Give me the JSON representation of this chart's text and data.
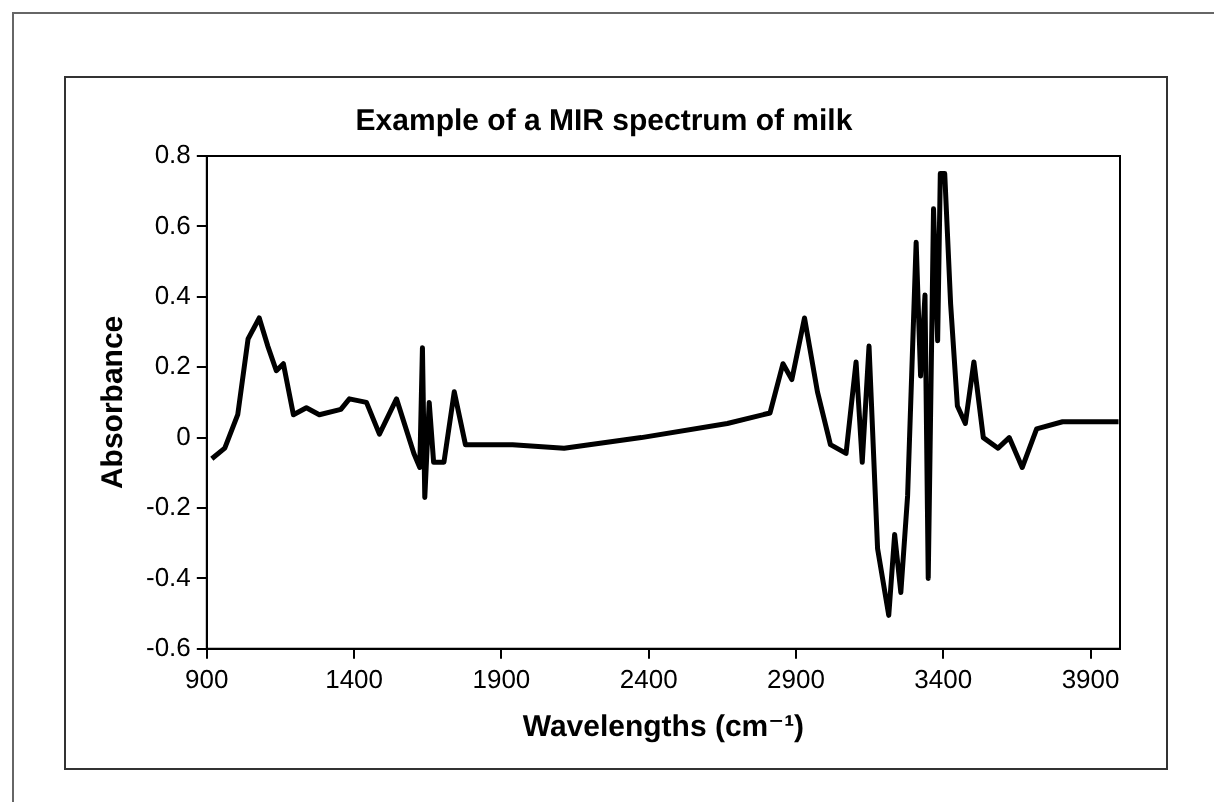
{
  "chart_data": {
    "type": "line",
    "title": "Example of a MIR spectrum of milk",
    "xlabel": "Wavelengths (cm⁻¹)",
    "ylabel": "Absorbance",
    "xlim": [
      900,
      4000
    ],
    "xticks": [
      900,
      1400,
      1900,
      2400,
      2900,
      3400,
      3900
    ],
    "ylim": [
      -0.6,
      0.8
    ],
    "yticks": [
      -0.6,
      -0.4,
      -0.2,
      0,
      0.2,
      0.4,
      0.6,
      0.8
    ],
    "grid": false,
    "legend": false,
    "marker": "none",
    "line_style": "solid",
    "series": [
      {
        "color": "#000000",
        "x": [
          917,
          961,
          1005,
          1040,
          1078,
          1107,
          1136,
          1160,
          1194,
          1238,
          1282,
          1355,
          1384,
          1442,
          1486,
          1544,
          1603,
          1623,
          1632,
          1640,
          1655,
          1670,
          1705,
          1740,
          1778,
          1938,
          2113,
          2375,
          2667,
          2812,
          2856,
          2886,
          2929,
          2973,
          3017,
          3070,
          3104,
          3125,
          3148,
          3177,
          3215,
          3235,
          3256,
          3279,
          3308,
          3323,
          3338,
          3349,
          3367,
          3381,
          3390,
          3405,
          3425,
          3448,
          3475,
          3504,
          3536,
          3586,
          3624,
          3668,
          3717,
          3805,
          3995
        ],
        "values": [
          -0.06,
          -0.03,
          0.065,
          0.28,
          0.34,
          0.26,
          0.19,
          0.21,
          0.065,
          0.085,
          0.065,
          0.08,
          0.11,
          0.1,
          0.01,
          0.11,
          -0.045,
          -0.085,
          0.255,
          -0.17,
          0.1,
          -0.07,
          -0.07,
          0.13,
          -0.02,
          -0.02,
          -0.03,
          0,
          0.04,
          0.07,
          0.21,
          0.165,
          0.34,
          0.13,
          -0.02,
          -0.045,
          0.215,
          -0.07,
          0.26,
          -0.315,
          -0.505,
          -0.275,
          -0.44,
          -0.165,
          0.555,
          0.175,
          0.405,
          -0.4,
          0.65,
          0.275,
          0.75,
          0.75,
          0.38,
          0.09,
          0.04,
          0.215,
          0,
          -0.03,
          0,
          -0.085,
          0.025,
          0.045,
          0.045
        ]
      }
    ]
  }
}
